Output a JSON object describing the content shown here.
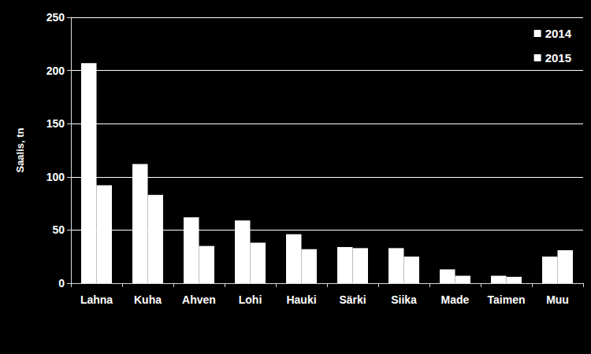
{
  "chart_data": {
    "type": "bar",
    "y_label": "Saalis, tn",
    "categories": [
      "Lahna",
      "Kuha",
      "Ahven",
      "Lohi",
      "Hauki",
      "Särki",
      "Siika",
      "Made",
      "Taimen",
      "Muu"
    ],
    "series": [
      {
        "name": "2014",
        "color": "#ffffff",
        "values": [
          207,
          112,
          62,
          59,
          46,
          34,
          33,
          13,
          7,
          25
        ]
      },
      {
        "name": "2015",
        "color": "#ffffff",
        "values": [
          92,
          83,
          35,
          38,
          32,
          33,
          25,
          7,
          6,
          31
        ]
      }
    ],
    "ylim": [
      0,
      250
    ],
    "yticks": [
      0,
      50,
      100,
      150,
      200,
      250
    ],
    "grid": true,
    "legend": "upper right"
  }
}
